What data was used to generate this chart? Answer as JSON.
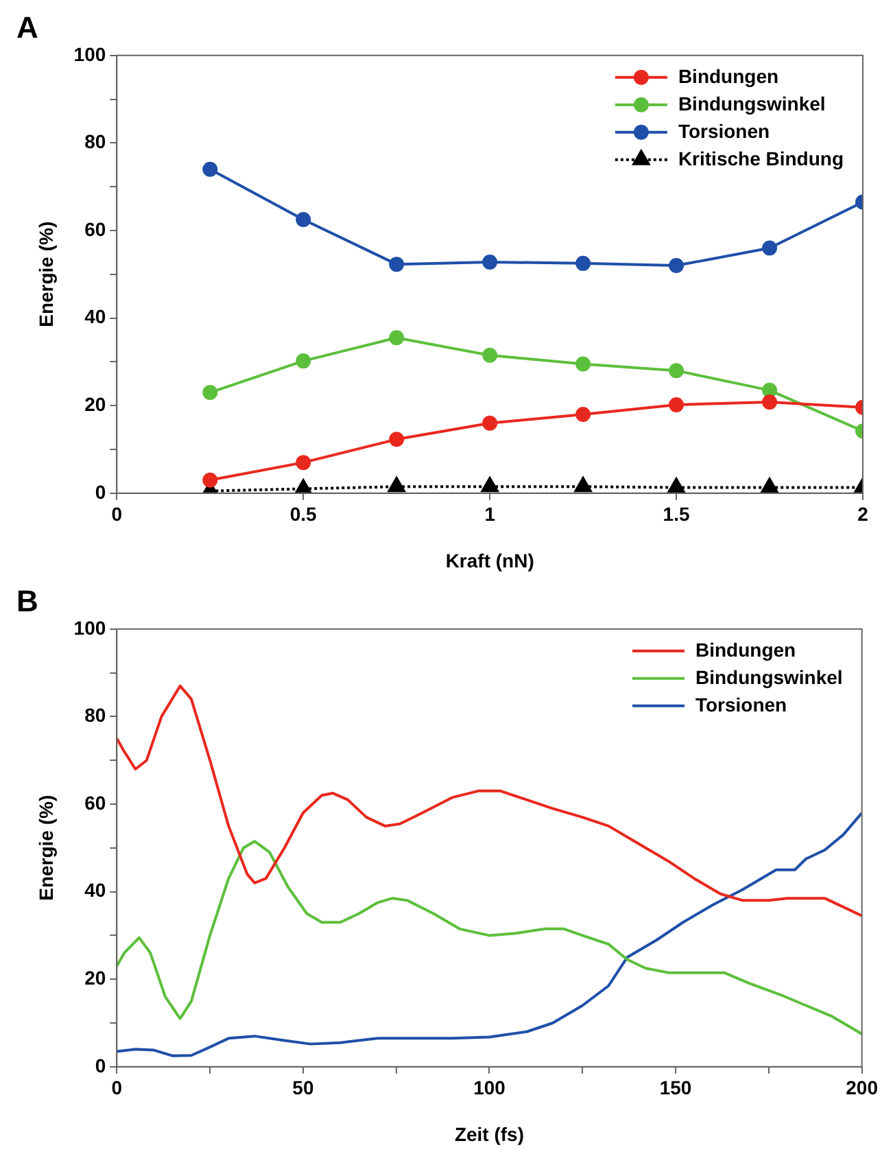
{
  "chart_data": [
    {
      "type": "line",
      "title": "A",
      "xlabel": "Kraft (nN)",
      "ylabel": "Energie (%)",
      "x": [
        0.25,
        0.5,
        0.75,
        1,
        1.25,
        1.5,
        1.75,
        2
      ],
      "xlim": [
        0,
        2
      ],
      "xticks": [
        0,
        0.5,
        1,
        1.5,
        2
      ],
      "ylim": [
        0,
        100
      ],
      "yticks": [
        0,
        {
          "value": 10,
          "label": null
        },
        20,
        {
          "value": 30,
          "label": null
        },
        40,
        {
          "value": 50,
          "label": null
        },
        60,
        {
          "value": 70,
          "label": null
        },
        80,
        {
          "value": 90,
          "label": null
        },
        100
      ],
      "grid": false,
      "legend": "top right",
      "marker": "circle",
      "line_style": "solid",
      "series": [
        {
          "name": "Bindungen",
          "color": "#e8281e",
          "values": [
            3,
            7,
            12.3,
            16,
            18,
            20.2,
            20.8,
            19.6
          ]
        },
        {
          "name": "Bindungswinkel",
          "color": "#5cbf3c",
          "values": [
            23,
            30.2,
            35.5,
            31.5,
            29.5,
            28,
            23.5,
            14.2
          ]
        },
        {
          "name": "Torsionen",
          "color": "#1f4fa8",
          "values": [
            74,
            62.5,
            52.3,
            52.8,
            52.5,
            52,
            56,
            66.5
          ]
        },
        {
          "name": "Kritische Bindung",
          "color": "#000000",
          "marker": "triangle",
          "line_style": "dotted",
          "values": [
            0.5,
            1,
            1.5,
            1.5,
            1.5,
            1.3,
            1.3,
            1.3
          ]
        }
      ]
    },
    {
      "type": "line",
      "title": "B",
      "xlabel": "Zeit (fs)",
      "ylabel": "Energie (%)",
      "xlim": [
        0,
        200
      ],
      "xticks": [
        0,
        {
          "value": 25,
          "label": null
        },
        50,
        {
          "value": 75,
          "label": null
        },
        100,
        {
          "value": 125,
          "label": null
        },
        150,
        {
          "value": 175,
          "label": null
        },
        200
      ],
      "ylim": [
        0,
        100
      ],
      "yticks": [
        0,
        {
          "value": 10,
          "label": null
        },
        20,
        {
          "value": 30,
          "label": null
        },
        40,
        {
          "value": 50,
          "label": null
        },
        60,
        {
          "value": 70,
          "label": null
        },
        80,
        {
          "value": 90,
          "label": null
        },
        100
      ],
      "grid": false,
      "legend": "top right",
      "marker": "none",
      "line_style": "solid",
      "series": [
        {
          "name": "Bindungen",
          "color": "#e8281e",
          "x": [
            0,
            2,
            5,
            8,
            12,
            17,
            20,
            25,
            30,
            35,
            37,
            40,
            45,
            50,
            55,
            58,
            62,
            67,
            72,
            76,
            82,
            90,
            97,
            103,
            110,
            117,
            125,
            132,
            140,
            148,
            155,
            162,
            168,
            175,
            180,
            190,
            195,
            200
          ],
          "values": [
            75,
            72,
            68,
            70,
            80,
            87,
            84,
            70,
            55,
            44,
            42,
            43,
            50,
            58,
            62,
            62.5,
            61,
            57,
            55,
            55.5,
            58,
            61.5,
            63,
            63,
            61,
            59,
            57,
            55,
            51,
            47,
            43,
            39.5,
            38,
            38,
            38.5,
            38.5,
            36.5,
            34.5
          ]
        },
        {
          "name": "Bindungswinkel",
          "color": "#5cbf3c",
          "x": [
            0,
            2,
            6,
            9,
            13,
            17,
            20,
            25,
            30,
            34,
            37,
            41,
            46,
            51,
            55,
            60,
            65,
            70,
            74,
            78,
            85,
            92,
            100,
            107,
            115,
            120,
            125,
            132,
            137,
            142,
            148,
            155,
            163,
            170,
            178,
            185,
            192,
            200
          ],
          "values": [
            23,
            26,
            29.5,
            26,
            16,
            11,
            15,
            30,
            43,
            50,
            51.5,
            49,
            41,
            35,
            33,
            33,
            35,
            37.5,
            38.5,
            38,
            35,
            31.5,
            30,
            30.5,
            31.5,
            31.5,
            30,
            28,
            24.5,
            22.5,
            21.5,
            21.5,
            21.5,
            19,
            16.5,
            14,
            11.5,
            7.5
          ]
        },
        {
          "name": "Torsionen",
          "color": "#1f4fa8",
          "x": [
            0,
            5,
            10,
            15,
            20,
            25,
            30,
            37,
            45,
            52,
            60,
            70,
            80,
            90,
            100,
            110,
            117,
            125,
            132,
            137,
            145,
            152,
            160,
            168,
            173,
            177,
            182,
            185,
            190,
            195,
            200
          ],
          "values": [
            3.5,
            4,
            3.8,
            2.5,
            2.6,
            4.5,
            6.5,
            7,
            6,
            5.2,
            5.5,
            6.5,
            6.5,
            6.5,
            6.8,
            8,
            10,
            14,
            18.5,
            25,
            29,
            33,
            37,
            40.5,
            43,
            45,
            45,
            47.5,
            49.5,
            53,
            58
          ]
        }
      ]
    }
  ]
}
